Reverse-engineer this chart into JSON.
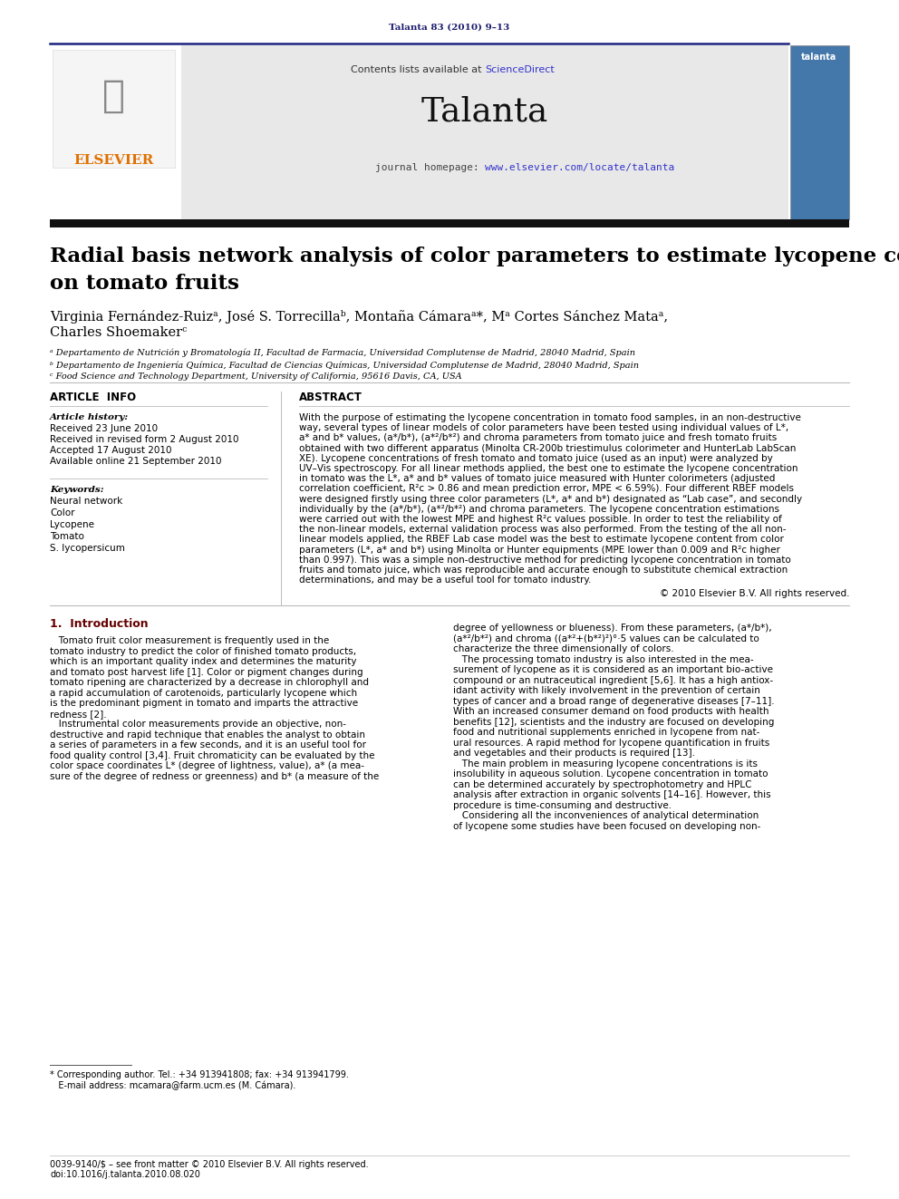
{
  "page_background": "#ffffff",
  "top_citation": "Talanta 83 (2010) 9–13",
  "top_citation_color": "#1a1a6e",
  "top_line_color": "#1a237e",
  "header_bg": "#e8e8e8",
  "header_contents_text": "Contents lists available at ",
  "header_sciencedirect_text": "ScienceDirect",
  "header_sciencedirect_color": "#3333cc",
  "journal_name": "Talanta",
  "journal_homepage_text": "journal homepage: ",
  "journal_homepage_url": "www.elsevier.com/locate/talanta",
  "journal_homepage_url_color": "#3333cc",
  "elsevier_color": "#e07000",
  "bottom_header_line_color": "#111111",
  "article_title_line1": "Radial basis network analysis of color parameters to estimate lycopene content",
  "article_title_line2": "on tomato fruits",
  "article_title_fontsize": 16.5,
  "author_line1": "Virginia Fernández-Ruizᵃ, José S. Torrecillaᵇ, Montaña Cámaraᵃ*, Mᵃ Cortes Sánchez Mataᵃ,",
  "author_line2": "Charles Shoemakerᶜ",
  "authors_fontsize": 10.5,
  "affiliation_a": "ᵃ Departamento de Nutrición y Bromatología II, Facultad de Farmacia, Universidad Complutense de Madrid, 28040 Madrid, Spain",
  "affiliation_b": "ᵇ Departamento de Ingeniería Química, Facultad de Ciencias Químicas, Universidad Complutense de Madrid, 28040 Madrid, Spain",
  "affiliation_c": "ᶜ Food Science and Technology Department, University of California, 95616 Davis, CA, USA",
  "affiliation_fontsize": 7.0,
  "divider_color": "#aaaaaa",
  "article_info_title": "ARTICLE  INFO",
  "article_history_title": "Article history:",
  "received": "Received 23 June 2010",
  "received_revised": "Received in revised form 2 August 2010",
  "accepted": "Accepted 17 August 2010",
  "available": "Available online 21 September 2010",
  "keywords_title": "Keywords:",
  "keywords": [
    "Neural network",
    "Color",
    "Lycopene",
    "Tomato",
    "S. lycopersicum"
  ],
  "abstract_title": "ABSTRACT",
  "abstract_lines": [
    "With the purpose of estimating the lycopene concentration in tomato food samples, in an non-destructive",
    "way, several types of linear models of color parameters have been tested using individual values of L*,",
    "a* and b* values, (a*/b*), (a*²/b*²) and chroma parameters from tomato juice and fresh tomato fruits",
    "obtained with two different apparatus (Minolta CR-200b triestimulus colorimeter and HunterLab LabScan",
    "XE). Lycopene concentrations of fresh tomato and tomato juice (used as an input) were analyzed by",
    "UV–Vis spectroscopy. For all linear methods applied, the best one to estimate the lycopene concentration",
    "in tomato was the L*, a* and b* values of tomato juice measured with Hunter colorimeters (adjusted",
    "correlation coefficient, R²c > 0.86 and mean prediction error, MPE < 6.59%). Four different RBEF models",
    "were designed firstly using three color parameters (L*, a* and b*) designated as “Lab case”, and secondly",
    "individually by the (a*/b*), (a*²/b*²) and chroma parameters. The lycopene concentration estimations",
    "were carried out with the lowest MPE and highest R²c values possible. In order to test the reliability of",
    "the non-linear models, external validation process was also performed. From the testing of the all non-",
    "linear models applied, the RBEF Lab case model was the best to estimate lycopene content from color",
    "parameters (L*, a* and b*) using Minolta or Hunter equipments (MPE lower than 0.009 and R²c higher",
    "than 0.997). This was a simple non-destructive method for predicting lycopene concentration in tomato",
    "fruits and tomato juice, which was reproducible and accurate enough to substitute chemical extraction",
    "determinations, and may be a useful tool for tomato industry."
  ],
  "abstract_copyright": "© 2010 Elsevier B.V. All rights reserved.",
  "section1_title": "1.  Introduction",
  "section1_col1_lines": [
    "   Tomato fruit color measurement is frequently used in the",
    "tomato industry to predict the color of finished tomato products,",
    "which is an important quality index and determines the maturity",
    "and tomato post harvest life [1]. Color or pigment changes during",
    "tomato ripening are characterized by a decrease in chlorophyll and",
    "a rapid accumulation of carotenoids, particularly lycopene which",
    "is the predominant pigment in tomato and imparts the attractive",
    "redness [2].",
    "   Instrumental color measurements provide an objective, non-",
    "destructive and rapid technique that enables the analyst to obtain",
    "a series of parameters in a few seconds, and it is an useful tool for",
    "food quality control [3,4]. Fruit chromaticity can be evaluated by the",
    "color space coordinates L* (degree of lightness, value), a* (a mea-",
    "sure of the degree of redness or greenness) and b* (a measure of the"
  ],
  "section1_col2_lines": [
    "degree of yellowness or blueness). From these parameters, (a*/b*),",
    "(a*²/b*²) and chroma ((a*²+(b*²)²)°·5 values can be calculated to",
    "characterize the three dimensionally of colors.",
    "   The processing tomato industry is also interested in the mea-",
    "surement of lycopene as it is considered as an important bio-active",
    "compound or an nutraceutical ingredient [5,6]. It has a high antiox-",
    "idant activity with likely involvement in the prevention of certain",
    "types of cancer and a broad range of degenerative diseases [7–11].",
    "With an increased consumer demand on food products with health",
    "benefits [12], scientists and the industry are focused on developing",
    "food and nutritional supplements enriched in lycopene from nat-",
    "ural resources. A rapid method for lycopene quantification in fruits",
    "and vegetables and their products is required [13].",
    "   The main problem in measuring lycopene concentrations is its",
    "insolubility in aqueous solution. Lycopene concentration in tomato",
    "can be determined accurately by spectrophotometry and HPLC",
    "analysis after extraction in organic solvents [14–16]. However, this",
    "procedure is time-consuming and destructive.",
    "   Considering all the inconveniences of analytical determination",
    "of lycopene some studies have been focused on developing non-"
  ],
  "footnote_star": "* Corresponding author. Tel.: +34 913941808; fax: +34 913941799.",
  "footnote_email": "   E-mail address: mcamara@farm.ucm.es (M. Cámara).",
  "footnote_issn": "0039-9140/$ – see front matter © 2010 Elsevier B.V. All rights reserved.",
  "footnote_doi": "doi:10.1016/j.talanta.2010.08.020",
  "section_title_color": "#660000",
  "link_color": "#3333cc"
}
